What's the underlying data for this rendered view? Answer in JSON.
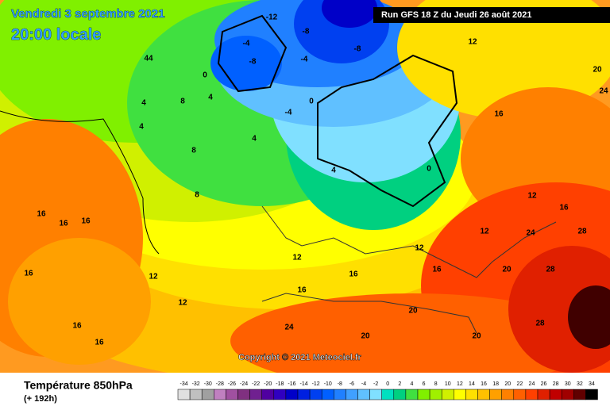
{
  "header": {
    "date": "Vendredi 3 septembre 2021",
    "time": "20:00 locale",
    "run": "Run GFS 18 Z du Jeudi 26 août 2021"
  },
  "copyright": "Copyright © 2021 Meteociel.fr",
  "footer": {
    "parameter": "Température 850hPa",
    "lead": "(+ 192h)"
  },
  "scale": {
    "labels": [
      -34,
      -32,
      -30,
      -28,
      -26,
      -24,
      -22,
      -20,
      -18,
      -16,
      -14,
      -12,
      -10,
      -8,
      -6,
      -4,
      -2,
      0,
      2,
      4,
      6,
      8,
      10,
      12,
      14,
      16,
      18,
      20,
      22,
      24,
      26,
      28,
      30,
      32,
      34
    ],
    "colors": [
      "#e0e0e0",
      "#c0c0c0",
      "#a0a0a0",
      "#c080c0",
      "#a050a0",
      "#803080",
      "#702090",
      "#5000a0",
      "#3000c0",
      "#0000c8",
      "#0020e0",
      "#0040f0",
      "#0060ff",
      "#2080ff",
      "#40a0ff",
      "#60c0ff",
      "#80e0ff",
      "#00e0c0",
      "#00d080",
      "#40e040",
      "#80f000",
      "#a0f000",
      "#d0f000",
      "#ffff00",
      "#ffe000",
      "#ffc000",
      "#ffa000",
      "#ff8000",
      "#ff6000",
      "#ff4000",
      "#e02000",
      "#c00000",
      "#a00000",
      "#600000",
      "#000000"
    ]
  },
  "map": {
    "contour_labels": [
      -12,
      -8,
      -8,
      -4,
      -8,
      -4,
      0,
      -4,
      4,
      8,
      4,
      8,
      8,
      4,
      0,
      12,
      16,
      12,
      12,
      16,
      24,
      28,
      20,
      20,
      28,
      20,
      24,
      20,
      28,
      20,
      16,
      16,
      16,
      16,
      12,
      12,
      16,
      16,
      12,
      16,
      16,
      16,
      12,
      4,
      4,
      44,
      0,
      24
    ]
  }
}
